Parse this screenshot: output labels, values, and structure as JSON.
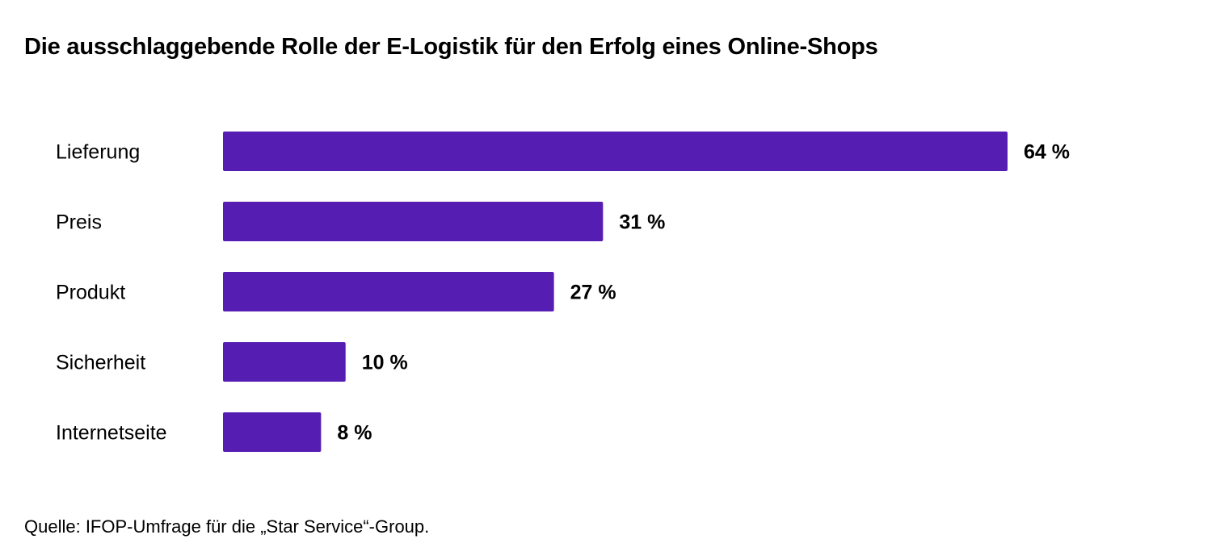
{
  "chart_data": {
    "type": "bar",
    "orientation": "horizontal",
    "title": "Die ausschlaggebende Rolle der E-Logistik für den Erfolg eines Online-Shops",
    "categories": [
      "Lieferung",
      "Preis",
      "Produkt",
      "Sicherheit",
      "Internetseite"
    ],
    "values": [
      64,
      31,
      27,
      10,
      8
    ],
    "value_labels": [
      "64 %",
      "31 %",
      "27 %",
      "10 %",
      "8 %"
    ],
    "unit": "%",
    "xlim": [
      0,
      64
    ],
    "grid": false,
    "bar_color": "#561db3",
    "source": "Quelle: IFOP-Umfrage für die „Star Service“-Group."
  }
}
